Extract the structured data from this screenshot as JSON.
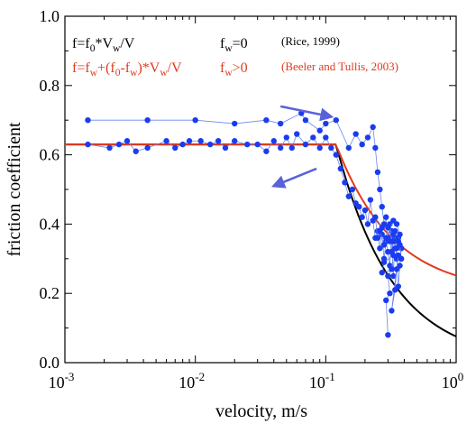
{
  "chart_data": {
    "type": "scatter",
    "xlabel": "velocity, m/s",
    "ylabel": "friction coefficient",
    "xscale": "log",
    "xlim": [
      0.001,
      1
    ],
    "ylim": [
      0,
      1
    ],
    "x_ticks": [
      {
        "value": 0.001,
        "base": "10",
        "exp": "-3"
      },
      {
        "value": 0.01,
        "base": "10",
        "exp": "-2"
      },
      {
        "value": 0.1,
        "base": "10",
        "exp": "-1"
      },
      {
        "value": 1,
        "base": "10",
        "exp": "0"
      }
    ],
    "y_ticks": [
      {
        "value": 0,
        "label": "0.0"
      },
      {
        "value": 0.2,
        "label": "0.2"
      },
      {
        "value": 0.4,
        "label": "0.4"
      },
      {
        "value": 0.6,
        "label": "0.6"
      },
      {
        "value": 0.8,
        "label": "0.8"
      },
      {
        "value": 1.0,
        "label": "1.0"
      }
    ],
    "grid": false,
    "colors": {
      "data": "#1a3cf0",
      "data_line": "#6c86f0",
      "model_black": "#000000",
      "model_red": "#e03a1e",
      "arrow": "#5a62d8"
    },
    "annotations": {
      "black_model": {
        "parts": [
          {
            "t": "f=f",
            "s": "normal"
          },
          {
            "t": "0",
            "s": "sub"
          },
          {
            "t": "*V",
            "s": "normal"
          },
          {
            "t": "w",
            "s": "sub"
          },
          {
            "t": "/V",
            "s": "normal"
          }
        ],
        "condition": [
          {
            "t": "f",
            "s": "normal"
          },
          {
            "t": "w",
            "s": "sub"
          },
          {
            "t": "=0",
            "s": "normal"
          }
        ],
        "reference": "(Rice, 1999)"
      },
      "red_model": {
        "parts": [
          {
            "t": "f=f",
            "s": "normal"
          },
          {
            "t": "w",
            "s": "sub"
          },
          {
            "t": "+(f",
            "s": "normal"
          },
          {
            "t": "0",
            "s": "sub"
          },
          {
            "t": "-f",
            "s": "normal"
          },
          {
            "t": "w",
            "s": "sub"
          },
          {
            "t": ")*V",
            "s": "normal"
          },
          {
            "t": "w",
            "s": "sub"
          },
          {
            "t": "/V",
            "s": "normal"
          }
        ],
        "condition": [
          {
            "t": "f",
            "s": "normal"
          },
          {
            "t": "w",
            "s": "sub"
          },
          {
            "t": ">0",
            "s": "normal"
          }
        ],
        "reference": "(Beeler and Tullis, 2003)"
      }
    },
    "models": [
      {
        "id": "rice",
        "f0": 0.63,
        "fw": 0.0,
        "vw": 0.12,
        "color": "#000000"
      },
      {
        "id": "beeler",
        "f0": 0.63,
        "fw": 0.2,
        "vw": 0.12,
        "color": "#e03a1e"
      }
    ],
    "series": [
      {
        "id": "acceleration",
        "points": [
          [
            0.0015,
            0.63
          ],
          [
            0.0022,
            0.62
          ],
          [
            0.0026,
            0.63
          ],
          [
            0.003,
            0.64
          ],
          [
            0.0035,
            0.61
          ],
          [
            0.0043,
            0.62
          ],
          [
            0.006,
            0.64
          ],
          [
            0.007,
            0.62
          ],
          [
            0.008,
            0.63
          ],
          [
            0.009,
            0.64
          ],
          [
            0.011,
            0.64
          ],
          [
            0.013,
            0.63
          ],
          [
            0.015,
            0.64
          ],
          [
            0.017,
            0.62
          ],
          [
            0.02,
            0.64
          ],
          [
            0.025,
            0.63
          ],
          [
            0.03,
            0.63
          ],
          [
            0.035,
            0.61
          ],
          [
            0.04,
            0.64
          ],
          [
            0.045,
            0.62
          ],
          [
            0.05,
            0.65
          ],
          [
            0.055,
            0.62
          ],
          [
            0.06,
            0.66
          ],
          [
            0.07,
            0.63
          ],
          [
            0.08,
            0.65
          ],
          [
            0.09,
            0.62
          ],
          [
            0.1,
            0.65
          ],
          [
            0.11,
            0.62
          ],
          [
            0.12,
            0.6
          ],
          [
            0.13,
            0.56
          ],
          [
            0.14,
            0.52
          ],
          [
            0.15,
            0.48
          ],
          [
            0.16,
            0.5
          ],
          [
            0.17,
            0.46
          ],
          [
            0.18,
            0.45
          ],
          [
            0.19,
            0.42
          ],
          [
            0.2,
            0.44
          ],
          [
            0.21,
            0.4
          ],
          [
            0.22,
            0.47
          ],
          [
            0.23,
            0.41
          ],
          [
            0.24,
            0.36
          ],
          [
            0.25,
            0.38
          ],
          [
            0.26,
            0.33
          ],
          [
            0.27,
            0.37
          ],
          [
            0.28,
            0.3
          ],
          [
            0.29,
            0.35
          ],
          [
            0.3,
            0.32
          ],
          [
            0.31,
            0.28
          ],
          [
            0.32,
            0.38
          ],
          [
            0.33,
            0.25
          ],
          [
            0.34,
            0.36
          ],
          [
            0.35,
            0.3
          ],
          [
            0.36,
            0.22
          ],
          [
            0.37,
            0.28
          ],
          [
            0.38,
            0.33
          ]
        ]
      },
      {
        "id": "deceleration",
        "points": [
          [
            0.38,
            0.3
          ],
          [
            0.37,
            0.34
          ],
          [
            0.36,
            0.36
          ],
          [
            0.35,
            0.33
          ],
          [
            0.34,
            0.38
          ],
          [
            0.33,
            0.35
          ],
          [
            0.32,
            0.32
          ],
          [
            0.31,
            0.4
          ],
          [
            0.3,
            0.36
          ],
          [
            0.29,
            0.42
          ],
          [
            0.28,
            0.4
          ],
          [
            0.27,
            0.45
          ],
          [
            0.26,
            0.5
          ],
          [
            0.25,
            0.55
          ],
          [
            0.24,
            0.62
          ],
          [
            0.23,
            0.68
          ],
          [
            0.21,
            0.65
          ],
          [
            0.19,
            0.63
          ],
          [
            0.17,
            0.66
          ],
          [
            0.15,
            0.62
          ],
          [
            0.12,
            0.7
          ],
          [
            0.1,
            0.69
          ],
          [
            0.09,
            0.67
          ],
          [
            0.07,
            0.7
          ],
          [
            0.065,
            0.72
          ],
          [
            0.045,
            0.69
          ],
          [
            0.035,
            0.7
          ],
          [
            0.02,
            0.69
          ],
          [
            0.01,
            0.7
          ],
          [
            0.0043,
            0.7
          ],
          [
            0.0015,
            0.7
          ]
        ]
      },
      {
        "id": "high-velocity-scatter",
        "points": [
          [
            0.3,
            0.08
          ],
          [
            0.29,
            0.18
          ],
          [
            0.31,
            0.2
          ],
          [
            0.3,
            0.25
          ],
          [
            0.32,
            0.27
          ],
          [
            0.33,
            0.31
          ],
          [
            0.28,
            0.29
          ],
          [
            0.27,
            0.26
          ],
          [
            0.35,
            0.27
          ],
          [
            0.34,
            0.21
          ],
          [
            0.32,
            0.15
          ],
          [
            0.36,
            0.31
          ],
          [
            0.31,
            0.35
          ],
          [
            0.33,
            0.37
          ],
          [
            0.3,
            0.39
          ],
          [
            0.29,
            0.36
          ],
          [
            0.34,
            0.33
          ],
          [
            0.36,
            0.35
          ],
          [
            0.37,
            0.37
          ],
          [
            0.35,
            0.4
          ],
          [
            0.33,
            0.41
          ],
          [
            0.28,
            0.34
          ],
          [
            0.26,
            0.38
          ],
          [
            0.25,
            0.36
          ],
          [
            0.24,
            0.42
          ],
          [
            0.27,
            0.39
          ]
        ]
      }
    ],
    "arrows": [
      {
        "from": [
          0.045,
          0.74
        ],
        "to": [
          0.11,
          0.71
        ]
      },
      {
        "from": [
          0.085,
          0.56
        ],
        "to": [
          0.04,
          0.51
        ]
      }
    ]
  }
}
